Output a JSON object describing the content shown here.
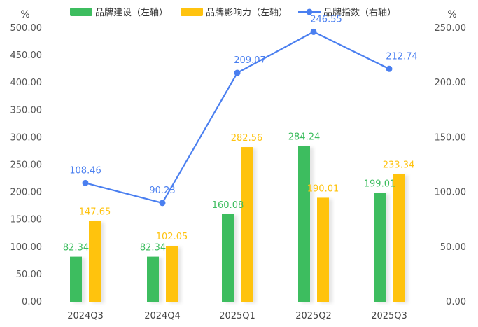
{
  "chart_data": {
    "type": "bar",
    "categories": [
      "2024Q3",
      "2024Q4",
      "2025Q1",
      "2025Q2",
      "2025Q3"
    ],
    "series": [
      {
        "name": "品牌建设（左轴）",
        "kind": "bar",
        "axis": "left",
        "color": "#3dbd5f",
        "values": [
          82.34,
          82.34,
          160.08,
          284.24,
          199.01
        ],
        "labels": [
          "82.34",
          "82.34",
          "160.08",
          "284.24",
          "199.01"
        ]
      },
      {
        "name": "品牌影响力（左轴）",
        "kind": "bar",
        "axis": "left",
        "color": "#ffc30f",
        "values": [
          147.65,
          102.05,
          282.56,
          190.01,
          233.34
        ],
        "labels": [
          "147.65",
          "102.05",
          "282.56",
          "190.01",
          "233.34"
        ]
      },
      {
        "name": "品牌指数（右轴）",
        "kind": "line",
        "axis": "right",
        "color": "#4a7ff0",
        "values": [
          108.46,
          90.23,
          209.07,
          246.55,
          212.74
        ],
        "labels": [
          "108.46",
          "90.23",
          "209.07",
          "246.55",
          "212.74"
        ]
      }
    ],
    "y_left": {
      "unit": "%",
      "ylim": [
        0,
        500
      ],
      "ticks": [
        "0.00",
        "50.00",
        "100.00",
        "150.00",
        "200.00",
        "250.00",
        "300.00",
        "350.00",
        "400.00",
        "450.00",
        "500.00"
      ]
    },
    "y_right": {
      "unit": "%",
      "ylim": [
        0,
        250
      ],
      "ticks": [
        "0.00",
        "50.00",
        "100.00",
        "150.00",
        "200.00",
        "250.00"
      ]
    },
    "grid": false,
    "legend_position": "top"
  }
}
